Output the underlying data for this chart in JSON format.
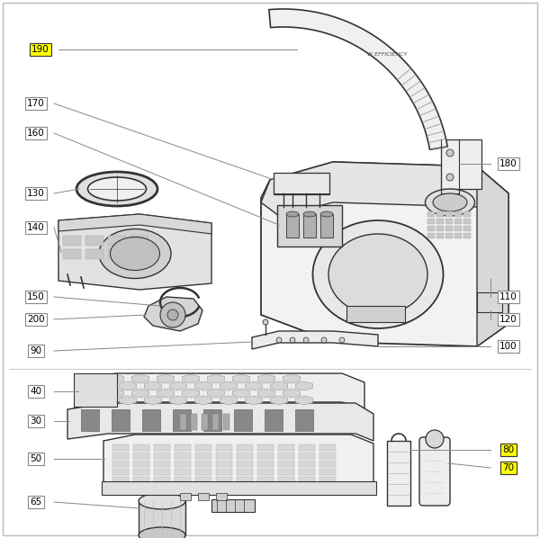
{
  "bg_color": "#ffffff",
  "lc": "#333333",
  "gray_line": "#999999",
  "label_yellow": "#ffff00",
  "label_white": "#ffffff",
  "label_border": "#555555",
  "label_border_plain": "#888888"
}
